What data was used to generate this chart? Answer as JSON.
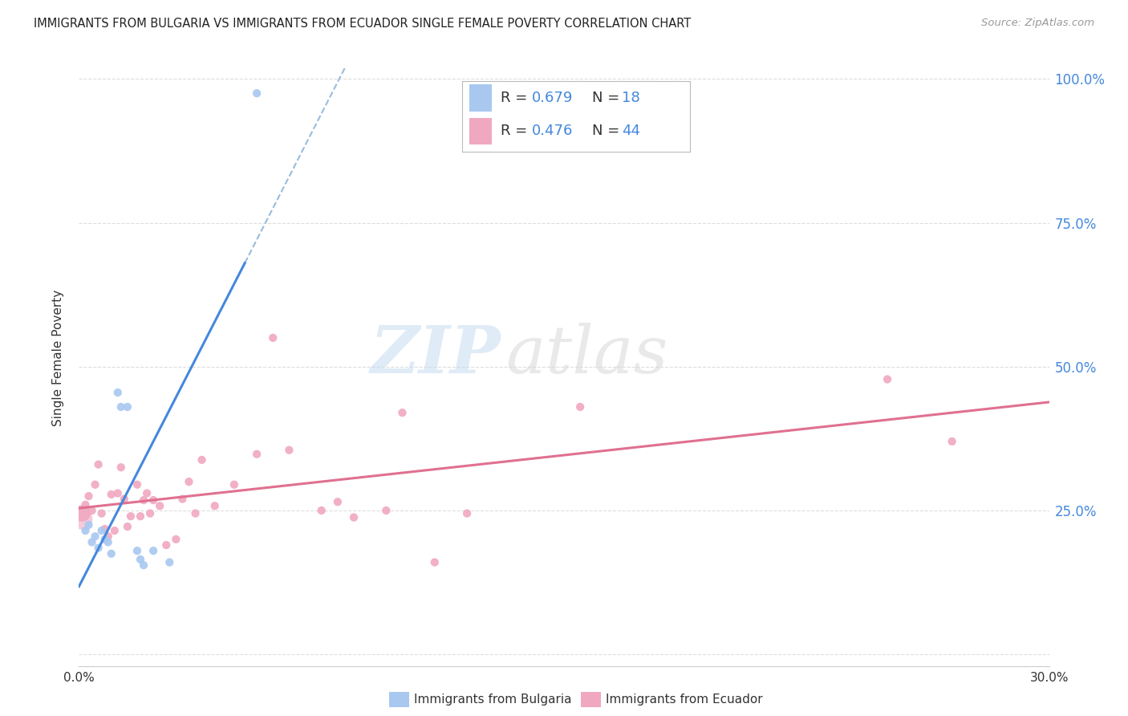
{
  "title": "IMMIGRANTS FROM BULGARIA VS IMMIGRANTS FROM ECUADOR SINGLE FEMALE POVERTY CORRELATION CHART",
  "source": "Source: ZipAtlas.com",
  "ylabel": "Single Female Poverty",
  "xlim": [
    0.0,
    0.3
  ],
  "ylim": [
    -0.02,
    1.05
  ],
  "yticks": [
    0.0,
    0.25,
    0.5,
    0.75,
    1.0
  ],
  "ytick_labels": [
    "",
    "25.0%",
    "50.0%",
    "75.0%",
    "100.0%"
  ],
  "xticks": [
    0.0,
    0.05,
    0.1,
    0.15,
    0.2,
    0.25,
    0.3
  ],
  "xtick_labels": [
    "0.0%",
    "",
    "",
    "",
    "",
    "",
    "30.0%"
  ],
  "watermark_zip": "ZIP",
  "watermark_atlas": "atlas",
  "legend_r_bulgaria": "R = 0.679",
  "legend_n_bulgaria": "N = 18",
  "legend_r_ecuador": "R = 0.476",
  "legend_n_ecuador": "N = 44",
  "bulgaria_color": "#a8c8f0",
  "ecuador_color": "#f0a8c0",
  "regression_bulgaria_color": "#4488dd",
  "regression_ecuador_color": "#e07090",
  "text_blue": "#4488dd",
  "background_color": "#ffffff",
  "grid_color": "#dddddd",
  "bulgaria_points": [
    [
      0.002,
      0.215
    ],
    [
      0.003,
      0.225
    ],
    [
      0.004,
      0.195
    ],
    [
      0.005,
      0.205
    ],
    [
      0.006,
      0.185
    ],
    [
      0.007,
      0.215
    ],
    [
      0.008,
      0.2
    ],
    [
      0.009,
      0.195
    ],
    [
      0.01,
      0.175
    ],
    [
      0.012,
      0.455
    ],
    [
      0.013,
      0.43
    ],
    [
      0.015,
      0.43
    ],
    [
      0.018,
      0.18
    ],
    [
      0.019,
      0.165
    ],
    [
      0.02,
      0.155
    ],
    [
      0.023,
      0.18
    ],
    [
      0.028,
      0.16
    ],
    [
      0.055,
      0.975
    ]
  ],
  "ecuador_points": [
    [
      0.001,
      0.245
    ],
    [
      0.002,
      0.26
    ],
    [
      0.003,
      0.275
    ],
    [
      0.004,
      0.25
    ],
    [
      0.005,
      0.295
    ],
    [
      0.006,
      0.33
    ],
    [
      0.007,
      0.245
    ],
    [
      0.008,
      0.218
    ],
    [
      0.009,
      0.205
    ],
    [
      0.01,
      0.278
    ],
    [
      0.011,
      0.215
    ],
    [
      0.012,
      0.28
    ],
    [
      0.013,
      0.325
    ],
    [
      0.014,
      0.27
    ],
    [
      0.015,
      0.222
    ],
    [
      0.016,
      0.24
    ],
    [
      0.018,
      0.295
    ],
    [
      0.019,
      0.24
    ],
    [
      0.02,
      0.268
    ],
    [
      0.021,
      0.28
    ],
    [
      0.022,
      0.245
    ],
    [
      0.023,
      0.268
    ],
    [
      0.025,
      0.258
    ],
    [
      0.027,
      0.19
    ],
    [
      0.03,
      0.2
    ],
    [
      0.032,
      0.27
    ],
    [
      0.034,
      0.3
    ],
    [
      0.036,
      0.245
    ],
    [
      0.038,
      0.338
    ],
    [
      0.042,
      0.258
    ],
    [
      0.048,
      0.295
    ],
    [
      0.055,
      0.348
    ],
    [
      0.06,
      0.55
    ],
    [
      0.065,
      0.355
    ],
    [
      0.075,
      0.25
    ],
    [
      0.08,
      0.265
    ],
    [
      0.085,
      0.238
    ],
    [
      0.095,
      0.25
    ],
    [
      0.1,
      0.42
    ],
    [
      0.11,
      0.16
    ],
    [
      0.12,
      0.245
    ],
    [
      0.155,
      0.43
    ],
    [
      0.25,
      0.478
    ],
    [
      0.27,
      0.37
    ]
  ],
  "ecuador_large_point": [
    0.001,
    0.245
  ],
  "bottom_legend_bulgaria": "Immigrants from Bulgaria",
  "bottom_legend_ecuador": "Immigrants from Ecuador"
}
